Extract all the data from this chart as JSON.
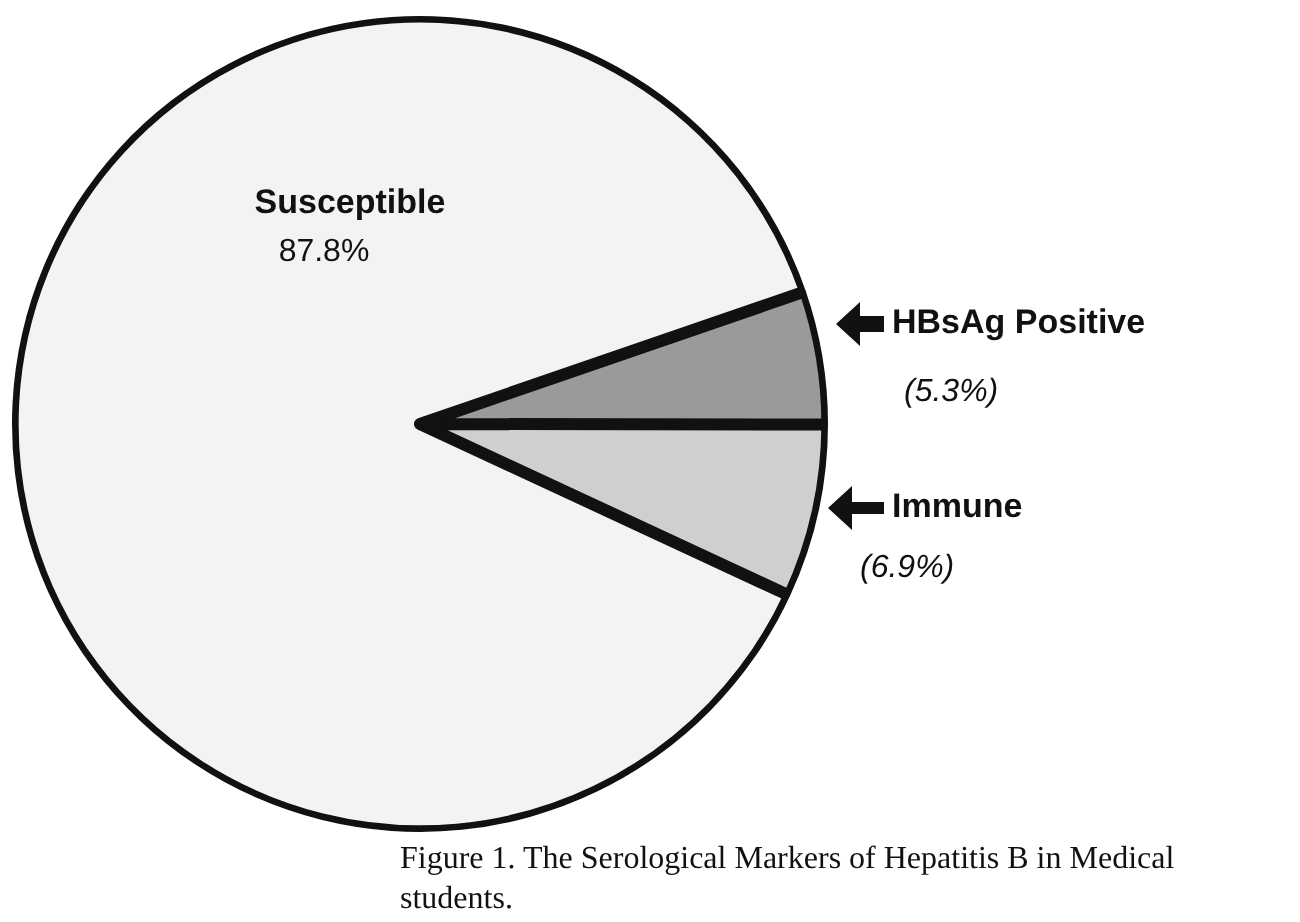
{
  "chart_data": {
    "type": "pie",
    "title": "Figure 1.  The Serological Markers of Hepatitis B in Medical students.",
    "categories": [
      "HBsAg Positive",
      "Immune",
      "Susceptible"
    ],
    "values": [
      5.3,
      6.9,
      87.8
    ],
    "colors": [
      "#9a9a9a",
      "#cfcfcf",
      "#f3f3f3"
    ],
    "value_labels": [
      "(5.3%)",
      "(6.9%)",
      "87.8%"
    ],
    "legend": false
  }
}
